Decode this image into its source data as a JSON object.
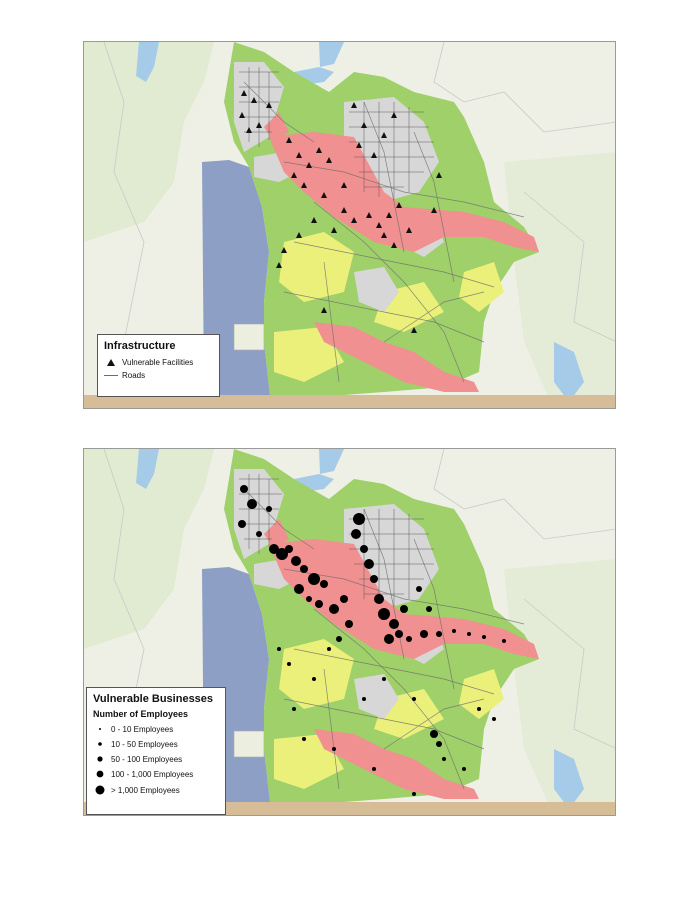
{
  "map1": {
    "legend": {
      "title": "Infrastructure",
      "items": [
        {
          "label": "Vulnerable Facilities",
          "symbol": "triangle-icon"
        },
        {
          "label": "Roads",
          "symbol": "line-icon"
        }
      ]
    }
  },
  "map2": {
    "legend": {
      "title": "Vulnerable Businesses",
      "subtitle": "Number of Employees",
      "items": [
        {
          "label": "0 - 10 Employees",
          "dot": 1
        },
        {
          "label": "10 - 50 Employees",
          "dot": 2
        },
        {
          "label": "50 - 100 Employees",
          "dot": 3
        },
        {
          "label": "100 - 1,000 Employees",
          "dot": 4
        },
        {
          "label": "> 1,000 Employees",
          "dot": 5
        }
      ]
    }
  },
  "colors": {
    "water": "#8e9fc6",
    "river": "#a6cbe8",
    "land": "#eef0e6",
    "background_green": "#dfead2",
    "risk_green": "#9fd06a",
    "risk_yellow": "#eaf07a",
    "risk_high": "#f09090",
    "urban": "#d7d7d7",
    "roads": "#6c6c6c",
    "bottom_strip": "#d6bd97"
  }
}
